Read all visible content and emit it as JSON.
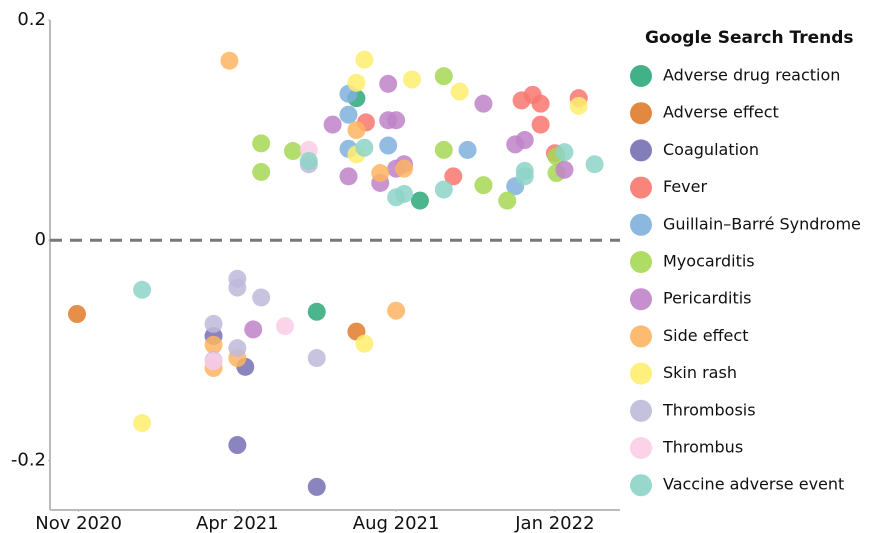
{
  "chart_data": {
    "type": "scatter",
    "legend_title": "Google Search Trends",
    "legend": "right",
    "xlim": [
      -0.18,
      3.41
    ],
    "xticks": [
      {
        "value": 0,
        "label": "Nov 2020"
      },
      {
        "value": 1,
        "label": "Apr 2021"
      },
      {
        "value": 2,
        "label": "Aug 2021"
      },
      {
        "value": 3,
        "label": "Jan 2022"
      }
    ],
    "ylim": [
      -0.245,
      0.2
    ],
    "yticks": [
      0.2,
      0,
      -0.2
    ],
    "series": [
      {
        "name": "Adverse drug reaction",
        "color": "#2ea87a",
        "x": [
          1.75,
          2.15,
          1.5
        ],
        "values": [
          0.129,
          0.036,
          -0.065
        ]
      },
      {
        "name": "Adverse effect",
        "color": "#e07b2a",
        "x": [
          -0.01,
          1.75
        ],
        "values": [
          -0.067,
          -0.083
        ]
      },
      {
        "name": "Coagulation",
        "color": "#7570b3",
        "x": [
          0.85,
          1.05,
          1.0,
          1.5
        ],
        "values": [
          -0.087,
          -0.115,
          -0.186,
          -0.224
        ]
      },
      {
        "name": "Fever",
        "color": "#f8776e",
        "x": [
          1.81,
          2.36,
          2.79,
          2.86,
          2.91,
          2.91,
          3.0,
          3.15
        ],
        "values": [
          0.107,
          0.058,
          0.127,
          0.132,
          0.124,
          0.105,
          0.079,
          0.129
        ]
      },
      {
        "name": "Guillain–Barré Syndrome",
        "color": "#7fb0dc",
        "x": [
          1.7,
          1.7,
          1.7,
          1.95,
          2.45,
          2.75
        ],
        "values": [
          0.133,
          0.114,
          0.083,
          0.086,
          0.082,
          0.049
        ]
      },
      {
        "name": "Myocarditis",
        "color": "#a6d854",
        "x": [
          1.15,
          1.15,
          1.35,
          2.3,
          2.3,
          2.55,
          2.7,
          3.01,
          3.01
        ],
        "values": [
          0.088,
          0.062,
          0.081,
          0.149,
          0.082,
          0.05,
          0.036,
          0.076,
          0.061
        ]
      },
      {
        "name": "Pericarditis",
        "color": "#c083c8",
        "x": [
          1.6,
          1.7,
          1.9,
          1.95,
          1.95,
          2.0,
          2.05,
          2.0,
          2.55,
          2.75,
          2.81,
          3.06,
          1.1
        ],
        "values": [
          0.105,
          0.058,
          0.052,
          0.142,
          0.109,
          0.109,
          0.069,
          0.065,
          0.124,
          0.087,
          0.091,
          0.064,
          -0.081
        ]
      },
      {
        "name": "Side effect",
        "color": "#fdb462",
        "x": [
          0.95,
          1.75,
          1.9,
          2.05,
          2.0,
          0.85,
          0.85,
          1.0
        ],
        "values": [
          0.163,
          0.1,
          0.061,
          0.065,
          -0.064,
          -0.095,
          -0.116,
          -0.107
        ]
      },
      {
        "name": "Skin rash",
        "color": "#ffed6f",
        "x": [
          1.75,
          1.8,
          1.75,
          2.1,
          2.4,
          3.15,
          0.4,
          1.8
        ],
        "values": [
          0.143,
          0.164,
          0.078,
          0.146,
          0.135,
          0.122,
          -0.166,
          -0.094
        ]
      },
      {
        "name": "Thrombosis",
        "color": "#bebada",
        "x": [
          1.0,
          1.0,
          1.15,
          0.85,
          1.0,
          0.85,
          1.5,
          1.45
        ],
        "values": [
          -0.035,
          -0.043,
          -0.052,
          -0.076,
          -0.098,
          -0.109,
          -0.107,
          0.069
        ]
      },
      {
        "name": "Thrombus",
        "color": "#fccde5",
        "x": [
          1.45,
          1.3,
          0.85
        ],
        "values": [
          0.082,
          -0.078,
          -0.11
        ]
      },
      {
        "name": "Vaccine adverse event",
        "color": "#8dd3c7",
        "x": [
          0.4,
          1.8,
          2.0,
          2.05,
          2.3,
          2.81,
          2.81,
          3.06,
          3.25,
          1.45
        ],
        "values": [
          -0.045,
          0.084,
          0.039,
          0.042,
          0.046,
          0.063,
          0.058,
          0.08,
          0.069,
          0.072
        ]
      }
    ]
  }
}
